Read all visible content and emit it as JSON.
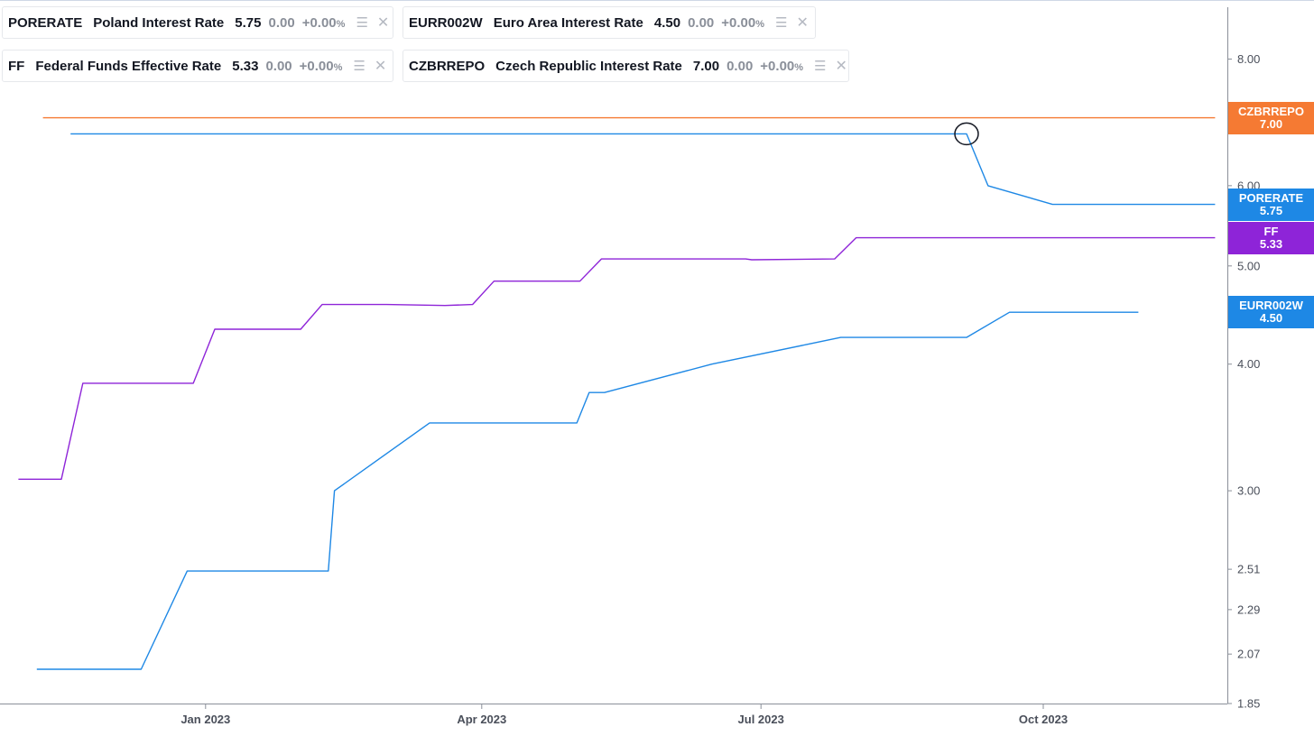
{
  "legend": [
    {
      "symbol": "PORERATE",
      "name": "Poland Interest Rate",
      "value": "5.75",
      "change": "0.00",
      "pct": "+0.00",
      "pct_unit": "%",
      "color": "#1e88e5"
    },
    {
      "symbol": "EURR002W",
      "name": "Euro Area Interest Rate",
      "value": "4.50",
      "change": "0.00",
      "pct": "+0.00",
      "pct_unit": "%",
      "color": "#1e88e5"
    },
    {
      "symbol": "FF",
      "name": "Federal Funds Effective Rate",
      "value": "5.33",
      "change": "0.00",
      "pct": "+0.00",
      "pct_unit": "%",
      "color": "#8e24d8"
    },
    {
      "symbol": "CZBRREPO",
      "name": "Czech Republic Interest Rate",
      "value": "7.00",
      "change": "0.00",
      "pct": "+0.00",
      "pct_unit": "%",
      "color": "#f57a33"
    }
  ],
  "badges": [
    {
      "symbol": "CZBRREPO",
      "value": "7.00",
      "color": "#f57a33"
    },
    {
      "symbol": "PORERATE",
      "value": "5.75",
      "color": "#1e88e5"
    },
    {
      "symbol": "FF",
      "value": "5.33",
      "color": "#8e24d8"
    },
    {
      "symbol": "EURR002W",
      "value": "4.50",
      "color": "#1e88e5"
    }
  ],
  "chart_data": {
    "type": "line",
    "y_scale": "log",
    "ylim": [
      1.85,
      9.0
    ],
    "xlim": [
      "2022-10-26",
      "2023-11-30"
    ],
    "y_ticks": [
      "8.00",
      "6.00",
      "5.00",
      "4.00",
      "3.00",
      "2.51",
      "2.29",
      "2.07",
      "1.85"
    ],
    "x_ticks": [
      {
        "date": "2023-01-01",
        "label": "Jan 2023"
      },
      {
        "date": "2023-04-01",
        "label": "Apr 2023"
      },
      {
        "date": "2023-07-01",
        "label": "Jul 2023"
      },
      {
        "date": "2023-10-01",
        "label": "Oct 2023"
      }
    ],
    "series": [
      {
        "name": "CZBRREPO",
        "color": "#f57a33",
        "points": [
          [
            "2022-11-09",
            7.0
          ],
          [
            "2023-11-26",
            7.0
          ]
        ]
      },
      {
        "name": "PORERATE",
        "color": "#1e88e5",
        "points": [
          [
            "2022-11-18",
            6.75
          ],
          [
            "2023-09-06",
            6.75
          ],
          [
            "2023-09-13",
            6.0
          ],
          [
            "2023-10-04",
            5.75
          ],
          [
            "2023-11-26",
            5.75
          ]
        ]
      },
      {
        "name": "FF",
        "color": "#8e24d8",
        "points": [
          [
            "2022-11-01",
            3.08
          ],
          [
            "2022-11-15",
            3.08
          ],
          [
            "2022-11-22",
            3.83
          ],
          [
            "2022-12-28",
            3.83
          ],
          [
            "2023-01-04",
            4.33
          ],
          [
            "2023-02-01",
            4.33
          ],
          [
            "2023-02-08",
            4.58
          ],
          [
            "2023-03-01",
            4.58
          ],
          [
            "2023-03-20",
            4.57
          ],
          [
            "2023-03-29",
            4.58
          ],
          [
            "2023-04-05",
            4.83
          ],
          [
            "2023-05-03",
            4.83
          ],
          [
            "2023-05-10",
            5.08
          ],
          [
            "2023-06-26",
            5.08
          ],
          [
            "2023-06-28",
            5.07
          ],
          [
            "2023-07-25",
            5.08
          ],
          [
            "2023-08-01",
            5.33
          ],
          [
            "2023-11-26",
            5.33
          ]
        ]
      },
      {
        "name": "EURR002W",
        "color": "#1e88e5",
        "points": [
          [
            "2022-11-07",
            2.0
          ],
          [
            "2022-12-11",
            2.0
          ],
          [
            "2022-12-26",
            2.5
          ],
          [
            "2023-02-10",
            2.5
          ],
          [
            "2023-02-12",
            3.0
          ],
          [
            "2023-03-15",
            3.5
          ],
          [
            "2023-05-02",
            3.5
          ],
          [
            "2023-05-06",
            3.75
          ],
          [
            "2023-05-11",
            3.75
          ],
          [
            "2023-06-15",
            4.0
          ],
          [
            "2023-07-27",
            4.25
          ],
          [
            "2023-09-06",
            4.25
          ],
          [
            "2023-09-20",
            4.5
          ],
          [
            "2023-11-01",
            4.5
          ]
        ]
      }
    ],
    "marker": {
      "date": "2023-09-06",
      "value": 6.75
    }
  }
}
